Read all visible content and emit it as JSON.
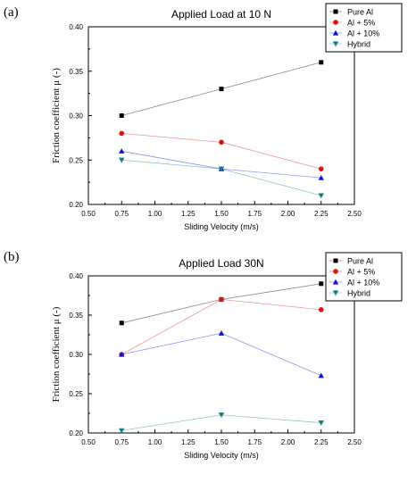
{
  "chart_data": [
    {
      "panel_label": "(a)",
      "type": "line",
      "title": "Applied Load at 10 N",
      "xlabel": "Sliding Velocity (m/s)",
      "ylabel": "Friction coefficient μ (-)",
      "xlim": [
        0.5,
        2.5
      ],
      "ylim": [
        0.2,
        0.4
      ],
      "xticks": [
        "0.50",
        "0.75",
        "1.00",
        "1.25",
        "1.50",
        "1.75",
        "2.00",
        "2.25",
        "2.50"
      ],
      "yticks": [
        "0.20",
        "0.25",
        "0.30",
        "0.35",
        "0.40"
      ],
      "x": [
        0.75,
        1.5,
        2.25
      ],
      "legend_position": "top-right",
      "grid": false,
      "series": [
        {
          "name": "Pure Al",
          "values": [
            0.3,
            0.33,
            0.36
          ],
          "color": "#000000",
          "marker": "square"
        },
        {
          "name": "Al + 5%",
          "values": [
            0.28,
            0.27,
            0.24
          ],
          "color": "#e01010",
          "marker": "circle"
        },
        {
          "name": "Al + 10%",
          "values": [
            0.26,
            0.24,
            0.23
          ],
          "color": "#1010e0",
          "marker": "triangle-up"
        },
        {
          "name": "Hybrid",
          "values": [
            0.25,
            0.24,
            0.21
          ],
          "color": "#0f7f7f",
          "marker": "triangle-down"
        }
      ]
    },
    {
      "panel_label": "(b)",
      "type": "line",
      "title": "Applied Load 30N",
      "xlabel": "Sliding Velocity (m/s)",
      "ylabel": "Friction coefficient μ (-)",
      "xlim": [
        0.5,
        2.5
      ],
      "ylim": [
        0.2,
        0.4
      ],
      "xticks": [
        "0.50",
        "0.75",
        "1.00",
        "1.25",
        "1.50",
        "1.75",
        "2.00",
        "2.25",
        "2.50"
      ],
      "yticks": [
        "0.20",
        "0.25",
        "0.30",
        "0.35",
        "0.40"
      ],
      "x": [
        0.75,
        1.5,
        2.25
      ],
      "legend_position": "top-right",
      "grid": false,
      "series": [
        {
          "name": "Pure Al",
          "values": [
            0.34,
            0.37,
            0.39
          ],
          "color": "#000000",
          "marker": "square"
        },
        {
          "name": "Al + 5%",
          "values": [
            0.3,
            0.37,
            0.357
          ],
          "color": "#e01010",
          "marker": "circle"
        },
        {
          "name": "Al + 10%",
          "values": [
            0.3,
            0.327,
            0.273
          ],
          "color": "#1010e0",
          "marker": "triangle-up"
        },
        {
          "name": "Hybrid",
          "values": [
            0.203,
            0.223,
            0.213
          ],
          "color": "#0f7f7f",
          "marker": "triangle-down"
        }
      ]
    }
  ]
}
